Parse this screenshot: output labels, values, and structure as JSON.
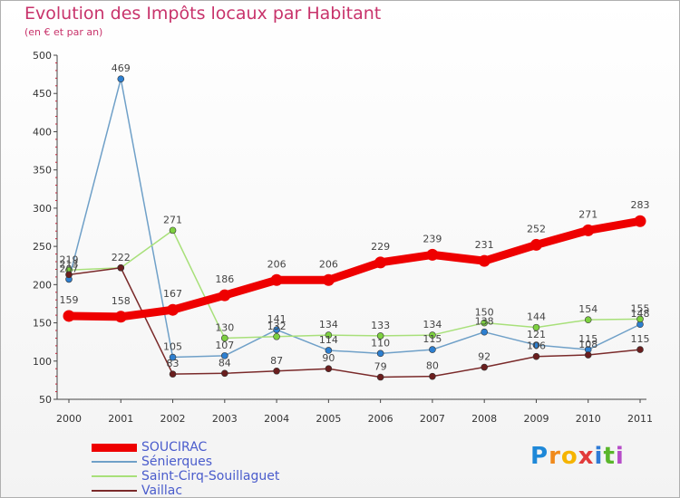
{
  "title": "Evolution des Impôts locaux par Habitant",
  "subtitle": "(en € et par an)",
  "logo_text": "Proxiti",
  "chart_data": {
    "type": "line",
    "title": "Evolution des Impôts locaux par Habitant",
    "ylabel": "(en € et par an)",
    "xlabel": "",
    "ylim": [
      50,
      500
    ],
    "yticks": [
      50,
      100,
      150,
      200,
      250,
      300,
      350,
      400,
      450,
      500
    ],
    "grid": false,
    "legend_position": "bottom-left",
    "categories": [
      "2000",
      "2001",
      "2002",
      "2003",
      "2004",
      "2005",
      "2006",
      "2007",
      "2008",
      "2009",
      "2010",
      "2011"
    ],
    "series": [
      {
        "name": "SOUCIRAC",
        "color": "#ee0000",
        "marker": "#ee0000",
        "emphasis": true,
        "values": [
          159,
          158,
          167,
          186,
          206,
          206,
          229,
          239,
          231,
          252,
          271,
          283
        ],
        "labels": [
          "159",
          "158",
          "167",
          "186",
          "206",
          "206",
          "229",
          "239",
          "231",
          "252",
          "271",
          "283"
        ]
      },
      {
        "name": "Sénierques",
        "color": "#6fa0c8",
        "marker": "#2d7fd0",
        "values": [
          207,
          469,
          105,
          107,
          141,
          114,
          110,
          115,
          138,
          121,
          115,
          148
        ],
        "labels": [
          "207",
          "469",
          "105",
          "107",
          "141",
          "114",
          "110",
          "115",
          "138",
          "121",
          "115",
          "148"
        ]
      },
      {
        "name": "Saint-Cirq-Souillaguet",
        "color": "#a8e07a",
        "marker": "#7dd040",
        "values": [
          219,
          222,
          271,
          130,
          132,
          134,
          133,
          134,
          150,
          144,
          154,
          155
        ],
        "labels": [
          "219",
          "",
          "271",
          "130",
          "132",
          "134",
          "133",
          "134",
          "150",
          "144",
          "154",
          "155"
        ]
      },
      {
        "name": "Vaillac",
        "color": "#7a2a2a",
        "marker": "#6a1e1e",
        "values": [
          213,
          222,
          83,
          84,
          87,
          90,
          79,
          80,
          92,
          106,
          108,
          115
        ],
        "labels": [
          "213",
          "222",
          "83",
          "84",
          "87",
          "90",
          "79",
          "80",
          "92",
          "106",
          "108",
          "115"
        ]
      }
    ]
  }
}
